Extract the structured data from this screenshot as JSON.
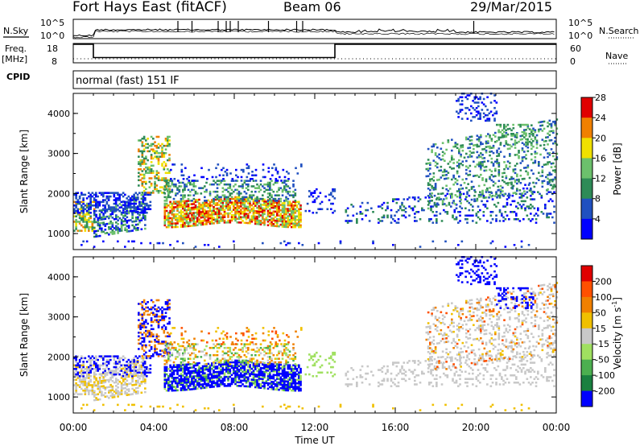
{
  "header": {
    "station": "Fort Hays East (fitACF)",
    "beam": "Beam 06",
    "date": "29/Mar/2015"
  },
  "strips": {
    "nsky_label": "N.Sky",
    "nsearch_label": "N.Search",
    "noise_ticks": [
      "10^5",
      "10^0"
    ],
    "freq_label": "Freq.",
    "freq_unit": "[MHz]",
    "freq_ticks": [
      "18",
      "8"
    ],
    "nave_label": "Nave",
    "nave_ticks": [
      "60",
      "0"
    ],
    "cpid_label": "CPID",
    "cpid_text": "normal (fast) 151 IF",
    "freq_data": {
      "x_hours": [
        0,
        1.0,
        1.0,
        13.0,
        13.0,
        24.0
      ],
      "mhz": [
        18,
        18,
        10.5,
        10.5,
        18,
        18
      ]
    }
  },
  "chart_data": [
    {
      "type": "heatmap",
      "name": "Power",
      "ylabel": "Slant Range [km]",
      "yticks": [
        "1000",
        "2000",
        "3000",
        "4000"
      ],
      "ylim": [
        600,
        4500
      ],
      "xlim": [
        0,
        24
      ],
      "colorbar": {
        "label": "Power [dB]",
        "ticks": [
          "4",
          "8",
          "12",
          "16",
          "20",
          "24",
          "28"
        ],
        "colors": [
          "#0000ff",
          "#2050c0",
          "#2e8b57",
          "#6cc06c",
          "#f0e000",
          "#f08000",
          "#e00000"
        ]
      }
    },
    {
      "type": "heatmap",
      "name": "Velocity",
      "ylabel": "Slant Range [km]",
      "yticks": [
        "1000",
        "2000",
        "3000",
        "4000"
      ],
      "ylim": [
        600,
        4500
      ],
      "xlim": [
        0,
        24
      ],
      "colorbar": {
        "label": "Velocity [m s",
        "label_sup": "-1",
        "label_end": "]",
        "ticks": [
          "200",
          "100",
          "50",
          "15",
          "-15",
          "-50",
          "-100",
          "-200"
        ],
        "colors": [
          "#0000ff",
          "#1a8040",
          "#4caf50",
          "#a0e060",
          "#c8c8c8",
          "#f0c000",
          "#f08000",
          "#ff5000",
          "#e00000"
        ]
      }
    }
  ],
  "xaxis": {
    "label": "Time UT",
    "ticks": [
      "00:00",
      "04:00",
      "08:00",
      "12:00",
      "16:00",
      "20:00",
      "00:00"
    ]
  }
}
